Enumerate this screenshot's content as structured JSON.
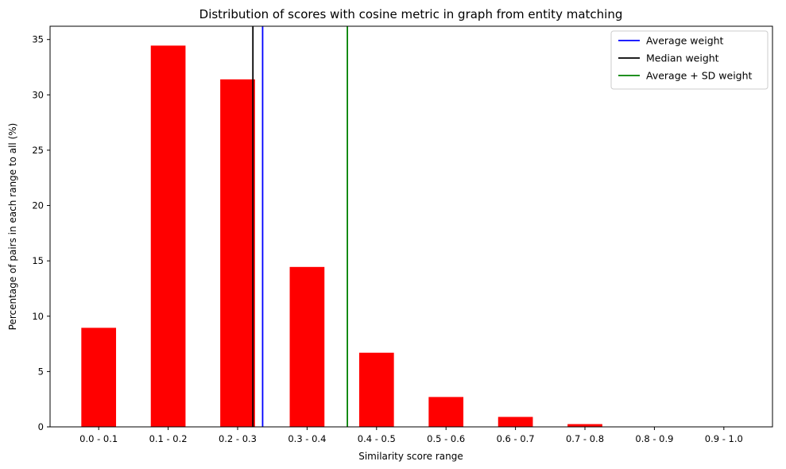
{
  "chart_data": {
    "type": "bar",
    "title": "Distribution of scores with cosine metric in graph from entity matching",
    "xlabel": "Similarity score range",
    "ylabel": "Percentage of pairs in each range to all (%)",
    "categories": [
      "0.0 - 0.1",
      "0.1 - 0.2",
      "0.2 - 0.3",
      "0.3 - 0.4",
      "0.4 - 0.5",
      "0.5 - 0.6",
      "0.6 - 0.7",
      "0.7 - 0.8",
      "0.8 - 0.9",
      "0.9 - 1.0"
    ],
    "values": [
      8.95,
      34.45,
      31.4,
      14.45,
      6.7,
      2.7,
      0.9,
      0.25,
      0.0,
      0.0
    ],
    "bar_color": "#ff0000",
    "ylim": [
      0,
      36.2
    ],
    "xlim": [
      -0.7,
      9.7
    ],
    "yticks": [
      0,
      5,
      10,
      15,
      20,
      25,
      30,
      35
    ],
    "grid": false,
    "legend_position": "top-right",
    "reference_lines": [
      {
        "name": "Average weight",
        "x": 2.36,
        "color": "#0000ff"
      },
      {
        "name": "Median weight",
        "x": 2.22,
        "color": "#000000"
      },
      {
        "name": "Average + SD weight",
        "x": 3.58,
        "color": "#008000"
      }
    ]
  }
}
